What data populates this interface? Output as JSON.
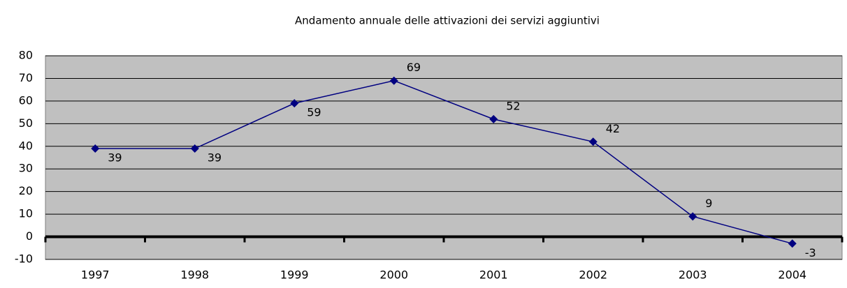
{
  "chart_data": {
    "type": "line",
    "title": "Andamento annuale delle attivazioni dei servizi aggiuntivi",
    "categories": [
      "1997",
      "1998",
      "1999",
      "2000",
      "2001",
      "2002",
      "2003",
      "2004"
    ],
    "values": [
      39,
      39,
      59,
      69,
      52,
      42,
      9,
      -3
    ],
    "color": "#000080",
    "ylim": [
      -10,
      80
    ],
    "yticks": [
      -10,
      0,
      10,
      20,
      30,
      40,
      50,
      60,
      70,
      80
    ],
    "grid": true
  }
}
